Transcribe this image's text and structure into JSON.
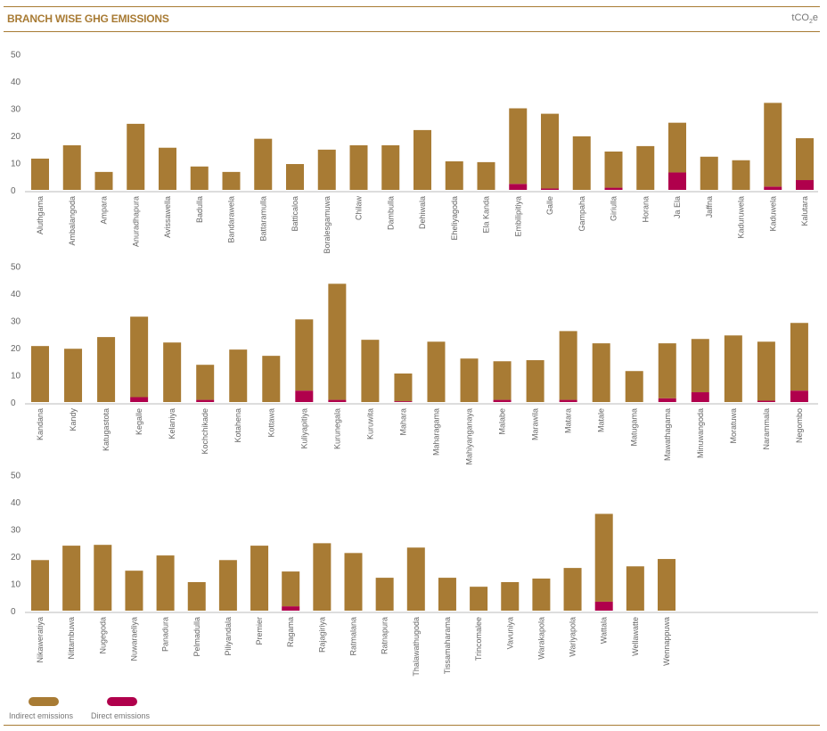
{
  "title": "BRANCH WISE GHG EMISSIONS",
  "unit": {
    "main": "tCO",
    "sub": "2",
    "tail": "e"
  },
  "colors": {
    "indirect": "#a87b34",
    "direct": "#b0004c"
  },
  "legend": {
    "indirect": "Indirect emissions",
    "direct": "Direct emissions"
  },
  "chart_data": [
    {
      "type": "bar",
      "stacked": true,
      "ylim": [
        0,
        50
      ],
      "yticks": [
        0,
        10,
        20,
        30,
        40,
        50
      ],
      "categories": [
        "Aluthgama",
        "Ambalangoda",
        "Ampara",
        "Anuradhapura",
        "Avissawella",
        "Badulla",
        "Bandarawela",
        "Battaramulla",
        "Batticaloa",
        "Boralesgamuwa",
        "Chilaw",
        "Dambulla",
        "Dehiwala",
        "Eheliyagoda",
        "Ela Kanda",
        "Embilipitiya",
        "Galle",
        "Gampaha",
        "Giriulla",
        "Horana",
        "Ja Ela",
        "Jaffna",
        "Kaduruwela",
        "Kaduwela",
        "Kalutara"
      ],
      "series": [
        {
          "name": "Direct emissions",
          "values": [
            0,
            0,
            0,
            0,
            0,
            0,
            0,
            0,
            0,
            0,
            0,
            0,
            0,
            0,
            0,
            2.2,
            0.5,
            0,
            0.8,
            0,
            6.4,
            0,
            0,
            1.2,
            3.6
          ]
        },
        {
          "name": "Indirect emissions",
          "values": [
            11.5,
            16.4,
            6.6,
            24.3,
            15.5,
            8.6,
            6.6,
            18.8,
            9.5,
            14.8,
            16.4,
            16.4,
            22,
            10.5,
            10.2,
            27.8,
            27.5,
            19.7,
            13.3,
            16.1,
            18.3,
            12.2,
            10.9,
            30.8,
            15.4
          ]
        }
      ]
    },
    {
      "type": "bar",
      "stacked": true,
      "ylim": [
        0,
        50
      ],
      "yticks": [
        0,
        10,
        20,
        30,
        40,
        50
      ],
      "categories": [
        "Kandana",
        "Kandy",
        "Katugastota",
        "Kegalle",
        "Kelaniya",
        "Kochchikade",
        "Kotahena",
        "Kottawa",
        "Kuliyapitiya",
        "Kurunegala",
        "Kuruwita",
        "Mahara",
        "Maharagama",
        "Mahiyanganaya",
        "Malabe",
        "Marawila",
        "Matara",
        "Matale",
        "Matugama",
        "Mawathagama",
        "Minuwangoda",
        "Moratuwa",
        "Narammala",
        "Negombo"
      ],
      "series": [
        {
          "name": "Direct emissions",
          "values": [
            0,
            0,
            0,
            1.8,
            0,
            0.8,
            0,
            0,
            4.2,
            0.8,
            0,
            0.3,
            0,
            0,
            0.8,
            0,
            0.8,
            0,
            0,
            1.4,
            3.6,
            0,
            0.5,
            4.2
          ]
        },
        {
          "name": "Indirect emissions",
          "values": [
            20.6,
            19.6,
            23.9,
            29.6,
            21.9,
            12.9,
            19.3,
            17,
            26.2,
            42.7,
            22.9,
            10.2,
            22.2,
            16,
            14.2,
            15.4,
            25.3,
            21.6,
            11.4,
            20.2,
            19.6,
            24.5,
            21.7,
            24.9
          ]
        }
      ]
    },
    {
      "type": "bar",
      "stacked": true,
      "ylim": [
        0,
        50
      ],
      "yticks": [
        0,
        10,
        20,
        30,
        40,
        50
      ],
      "categories": [
        "Nikaweratiya",
        "Nittambuwa",
        "Nugegoda",
        "Nuwaraeliya",
        "Panadura",
        "Pelmadulla",
        "Piliyandala",
        "Premier",
        "Ragama",
        "Rajagiriya",
        "Ratmalana",
        "Ratnapura",
        "Thalawathugoda",
        "Tissamaharama",
        "Trincomalee",
        "Vavuniya",
        "Warakapola",
        "Wariyapola",
        "Wattala",
        "Wellawatte",
        "Wennappuwa"
      ],
      "series": [
        {
          "name": "Direct emissions",
          "values": [
            0,
            0,
            0,
            0,
            0,
            0,
            0,
            0,
            1.6,
            0,
            0,
            0,
            0,
            0,
            0,
            0,
            0,
            0,
            3.3,
            0,
            0
          ]
        },
        {
          "name": "Indirect emissions",
          "values": [
            18.6,
            23.9,
            24.2,
            14.7,
            20.3,
            10.5,
            18.6,
            23.9,
            12.8,
            24.8,
            21.2,
            12.1,
            23.2,
            12.1,
            8.8,
            10.5,
            11.8,
            15.7,
            32.3,
            16.3,
            19
          ]
        }
      ]
    }
  ]
}
